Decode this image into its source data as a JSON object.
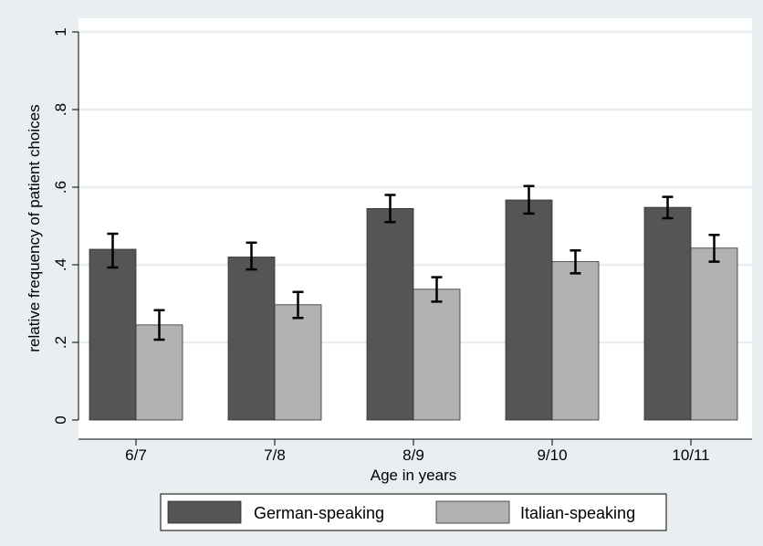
{
  "chart_data": {
    "type": "bar",
    "categories": [
      "6/7",
      "7/8",
      "8/9",
      "9/10",
      "10/11"
    ],
    "series": [
      {
        "name": "German-speaking",
        "values": [
          0.44,
          0.42,
          0.545,
          0.567,
          0.548
        ],
        "error_low": [
          0.393,
          0.388,
          0.51,
          0.532,
          0.52
        ],
        "error_high": [
          0.48,
          0.457,
          0.58,
          0.603,
          0.575
        ],
        "color": "#555555"
      },
      {
        "name": "Italian-speaking",
        "values": [
          0.245,
          0.297,
          0.337,
          0.408,
          0.443
        ],
        "error_low": [
          0.207,
          0.263,
          0.305,
          0.378,
          0.408
        ],
        "error_high": [
          0.283,
          0.33,
          0.368,
          0.437,
          0.477
        ],
        "color": "#b2b2b2"
      }
    ],
    "xlabel": "Age in years",
    "ylabel": "relative frequency of patient choices",
    "ylim": [
      0,
      1
    ],
    "yticks": [
      0,
      0.2,
      0.4,
      0.6,
      0.8,
      1
    ],
    "ytick_labels": [
      "0",
      ".2",
      ".4",
      ".6",
      ".8",
      "1"
    ],
    "grid": true,
    "legend_position": "bottom",
    "background_color": "#e9eef1",
    "plot_background_color": "#ffffff",
    "grid_color": "#e9eef1",
    "error_bar_color": "#000000"
  }
}
